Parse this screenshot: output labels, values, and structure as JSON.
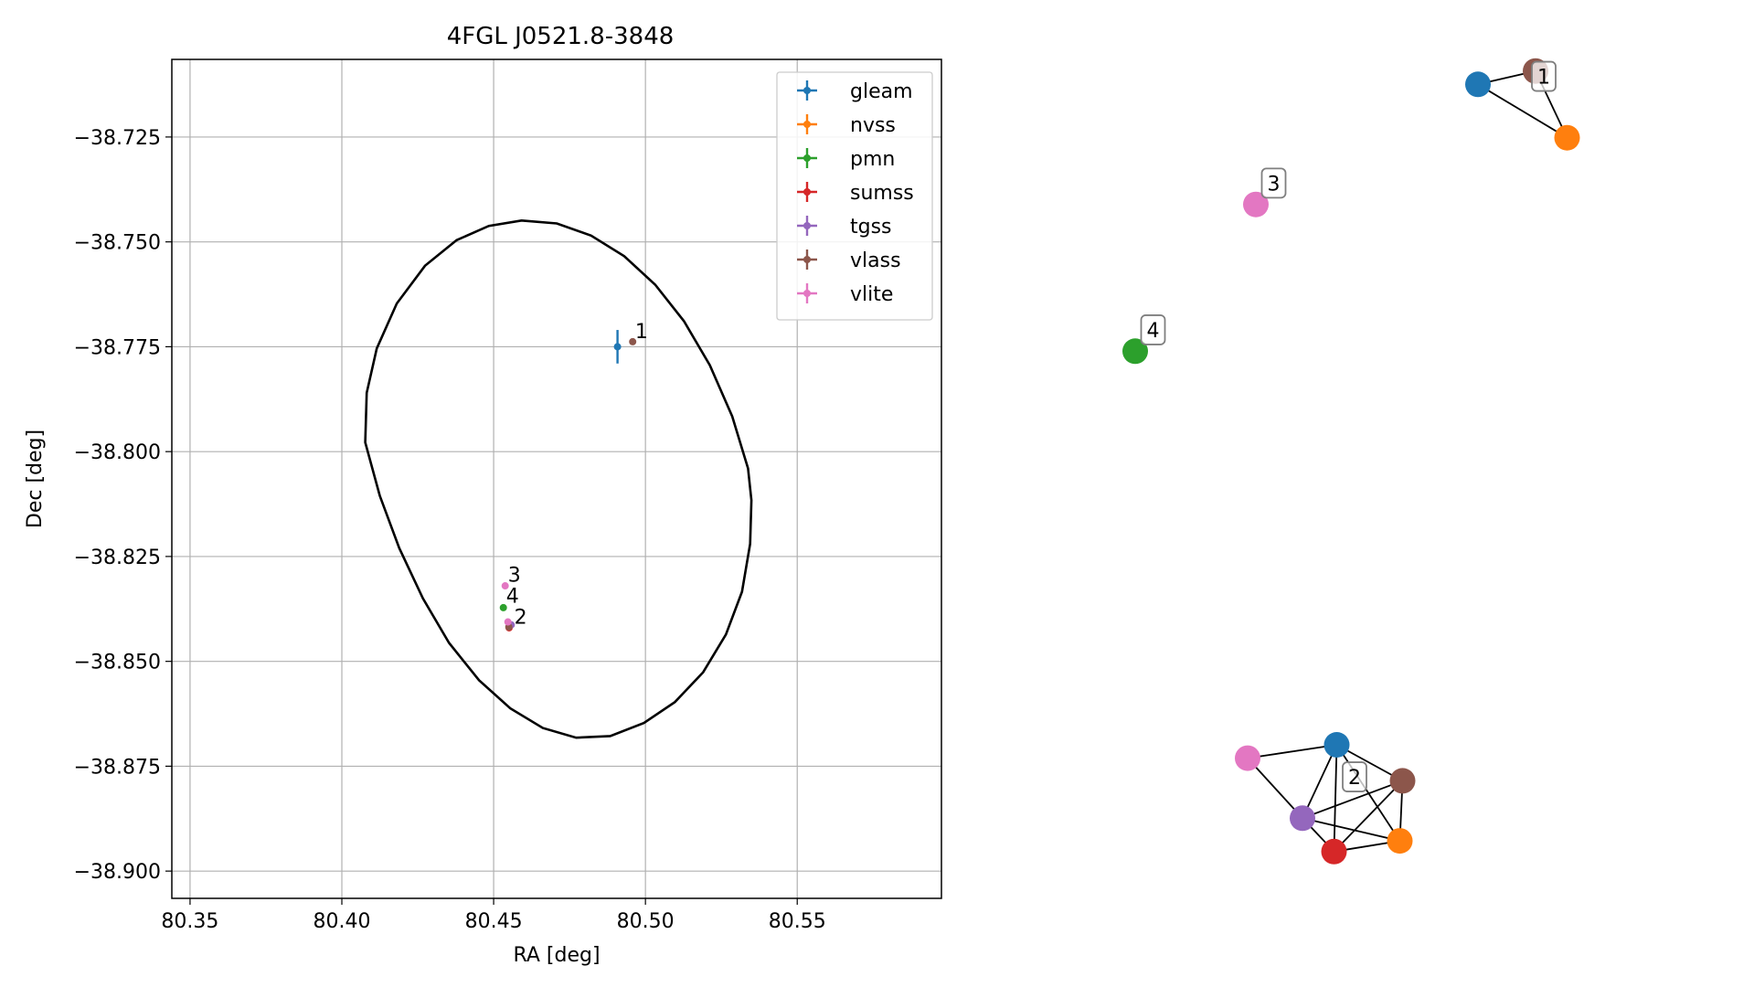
{
  "chart_data": [
    {
      "type": "scatter",
      "title": "4FGL J0521.8-3848",
      "xlabel": "RA [deg]",
      "ylabel": "Dec [deg]",
      "xlim": [
        80.344,
        80.5975
      ],
      "ylim": [
        -38.9065,
        -38.7065
      ],
      "xticks": [
        80.35,
        80.4,
        80.45,
        80.5,
        80.55
      ],
      "xtick_labels": [
        "80.35",
        "80.40",
        "80.45",
        "80.50",
        "80.55"
      ],
      "yticks": [
        -38.725,
        -38.75,
        -38.775,
        -38.8,
        -38.825,
        -38.85,
        -38.875,
        -38.9
      ],
      "ytick_labels": [
        "−38.725",
        "−38.750",
        "−38.775",
        "−38.800",
        "−38.825",
        "−38.850",
        "−38.875",
        "−38.900"
      ],
      "grid": true,
      "legend_placement": "upper-right",
      "series": [
        {
          "name": "gleam",
          "color": "#1f77b4",
          "points": [
            {
              "x": 80.4908,
              "y": -38.775,
              "yerr": 0.004,
              "xerr": 0.0008
            }
          ]
        },
        {
          "name": "nvss",
          "color": "#ff7f0e",
          "points": [
            {
              "x": 80.4552,
              "y": -38.8415
            }
          ]
        },
        {
          "name": "pmn",
          "color": "#2ca02c",
          "points": [
            {
              "x": 80.4532,
              "y": -38.8372
            }
          ]
        },
        {
          "name": "sumss",
          "color": "#d62728",
          "points": [
            {
              "x": 80.4551,
              "y": -38.842
            }
          ]
        },
        {
          "name": "tgss",
          "color": "#9467bd",
          "points": [
            {
              "x": 80.4558,
              "y": -38.8413
            }
          ]
        },
        {
          "name": "vlass",
          "color": "#8c564b",
          "points": [
            {
              "x": 80.4958,
              "y": -38.7738
            },
            {
              "x": 80.455,
              "y": -38.8418
            }
          ]
        },
        {
          "name": "vlite",
          "color": "#e377c2",
          "points": [
            {
              "x": 80.4538,
              "y": -38.832
            },
            {
              "x": 80.4547,
              "y": -38.8406
            }
          ]
        }
      ],
      "annotations": [
        {
          "text": "1",
          "x": 80.496,
          "y": -38.773
        },
        {
          "text": "2",
          "x": 80.4562,
          "y": -38.841
        },
        {
          "text": "3",
          "x": 80.4541,
          "y": -38.831
        },
        {
          "text": "4",
          "x": 80.4535,
          "y": -38.836
        }
      ],
      "ellipse": {
        "points": [
          [
            80.4592,
            -38.7449
          ],
          [
            80.4708,
            -38.7456
          ],
          [
            80.4821,
            -38.7485
          ],
          [
            80.493,
            -38.7534
          ],
          [
            80.5032,
            -38.7602
          ],
          [
            80.5127,
            -38.7689
          ],
          [
            80.5212,
            -38.7794
          ],
          [
            80.5286,
            -38.7916
          ],
          [
            80.5338,
            -38.804
          ],
          [
            80.5349,
            -38.8116
          ],
          [
            80.5345,
            -38.822
          ],
          [
            80.5318,
            -38.8334
          ],
          [
            80.5265,
            -38.8436
          ],
          [
            80.519,
            -38.8526
          ],
          [
            80.5097,
            -38.8597
          ],
          [
            80.4995,
            -38.8647
          ],
          [
            80.4884,
            -38.8678
          ],
          [
            80.4772,
            -38.8682
          ],
          [
            80.4662,
            -38.8659
          ],
          [
            80.4555,
            -38.8612
          ],
          [
            80.4452,
            -38.8545
          ],
          [
            80.4353,
            -38.8456
          ],
          [
            80.4267,
            -38.835
          ],
          [
            80.4189,
            -38.823
          ],
          [
            80.4125,
            -38.8105
          ],
          [
            80.4077,
            -38.7978
          ],
          [
            80.4082,
            -38.786
          ],
          [
            80.4115,
            -38.7754
          ],
          [
            80.4181,
            -38.7647
          ],
          [
            80.4274,
            -38.7557
          ],
          [
            80.4378,
            -38.7496
          ],
          [
            80.4484,
            -38.7462
          ]
        ]
      }
    },
    {
      "type": "network",
      "nodes": [
        {
          "id": "g1",
          "color": "#1f77b4",
          "x": 1.1,
          "y": 4.45
        },
        {
          "id": "v1",
          "color": "#8c564b",
          "x": 1.52,
          "y": 4.55
        },
        {
          "id": "n1",
          "color": "#ff7f0e",
          "x": 1.75,
          "y": 4.05
        },
        {
          "id": "li3",
          "color": "#e377c2",
          "x": -0.52,
          "y": 3.55
        },
        {
          "id": "p4",
          "color": "#2ca02c",
          "x": -1.4,
          "y": 2.45
        },
        {
          "id": "li2",
          "color": "#e377c2",
          "x": -0.58,
          "y": -0.6
        },
        {
          "id": "g2",
          "color": "#1f77b4",
          "x": 0.07,
          "y": -0.5
        },
        {
          "id": "v2",
          "color": "#8c564b",
          "x": 0.55,
          "y": -0.77
        },
        {
          "id": "t2",
          "color": "#9467bd",
          "x": -0.18,
          "y": -1.05
        },
        {
          "id": "s2",
          "color": "#d62728",
          "x": 0.05,
          "y": -1.3
        },
        {
          "id": "n2",
          "color": "#ff7f0e",
          "x": 0.53,
          "y": -1.22
        }
      ],
      "edges": [
        [
          "g1",
          "v1"
        ],
        [
          "g1",
          "n1"
        ],
        [
          "v1",
          "n1"
        ],
        [
          "li2",
          "g2"
        ],
        [
          "li2",
          "t2"
        ],
        [
          "g2",
          "t2"
        ],
        [
          "g2",
          "s2"
        ],
        [
          "g2",
          "v2"
        ],
        [
          "g2",
          "n2"
        ],
        [
          "v2",
          "t2"
        ],
        [
          "v2",
          "s2"
        ],
        [
          "v2",
          "n2"
        ],
        [
          "t2",
          "s2"
        ],
        [
          "t2",
          "n2"
        ],
        [
          "s2",
          "n2"
        ]
      ],
      "labels": [
        {
          "text": "1",
          "x": 1.58,
          "y": 4.51
        },
        {
          "text": "2",
          "x": 0.2,
          "y": -0.74
        },
        {
          "text": "3",
          "x": -0.39,
          "y": 3.71
        },
        {
          "text": "4",
          "x": -1.27,
          "y": 2.61
        }
      ]
    }
  ]
}
